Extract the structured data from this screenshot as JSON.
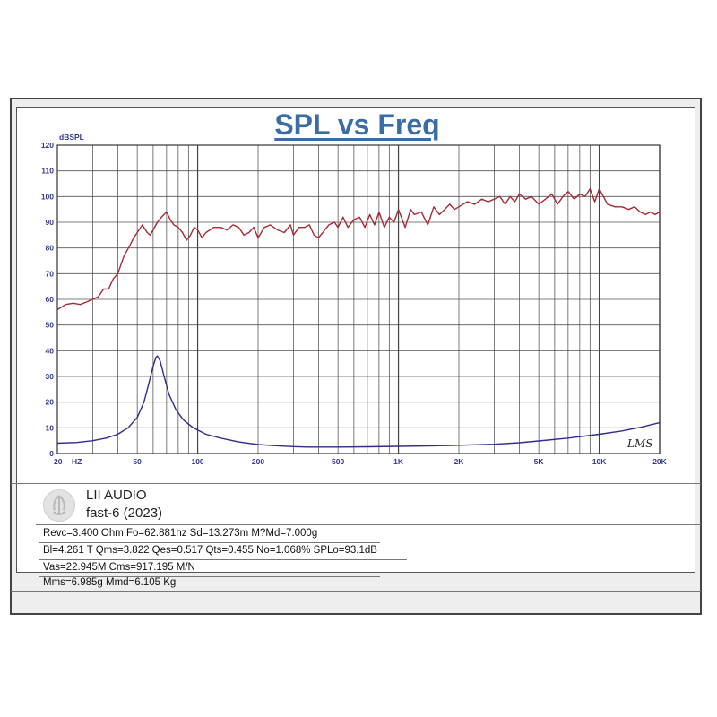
{
  "chart_data": {
    "type": "line",
    "title": "SPL vs Freq",
    "ylabel": "dBSPL",
    "xscale": "log",
    "xlim": [
      20,
      20000
    ],
    "ylim": [
      0,
      120
    ],
    "grid": true,
    "yticks": [
      0,
      10,
      20,
      30,
      40,
      50,
      60,
      70,
      80,
      90,
      100,
      110,
      120
    ],
    "xtick_labels": [
      {
        "value": 20,
        "label": "20"
      },
      {
        "value": 25,
        "label": "HZ"
      },
      {
        "value": 50,
        "label": "50"
      },
      {
        "value": 100,
        "label": "100"
      },
      {
        "value": 200,
        "label": "200"
      },
      {
        "value": 500,
        "label": "500"
      },
      {
        "value": 1000,
        "label": "1K"
      },
      {
        "value": 2000,
        "label": "2K"
      },
      {
        "value": 5000,
        "label": "5K"
      },
      {
        "value": 10000,
        "label": "10K"
      },
      {
        "value": 20000,
        "label": "20K"
      }
    ],
    "series": [
      {
        "color": "#a52a35",
        "x": [
          20,
          22,
          24,
          26,
          28,
          30,
          32,
          34,
          36,
          38,
          40,
          43,
          46,
          48,
          50,
          53,
          56,
          58,
          60,
          63,
          66,
          70,
          73,
          76,
          80,
          84,
          88,
          92,
          96,
          100,
          105,
          110,
          115,
          120,
          130,
          140,
          150,
          160,
          170,
          180,
          190,
          200,
          215,
          230,
          250,
          270,
          290,
          300,
          320,
          340,
          360,
          380,
          400,
          420,
          450,
          480,
          500,
          530,
          560,
          600,
          640,
          680,
          720,
          760,
          800,
          850,
          900,
          950,
          1000,
          1080,
          1150,
          1200,
          1300,
          1400,
          1500,
          1600,
          1700,
          1800,
          1900,
          2000,
          2200,
          2400,
          2600,
          2800,
          3000,
          3200,
          3400,
          3600,
          3800,
          4000,
          4300,
          4600,
          5000,
          5400,
          5800,
          6200,
          6600,
          7000,
          7500,
          8000,
          8500,
          9000,
          9500,
          10000,
          10500,
          11000,
          12000,
          13000,
          14000,
          15000,
          16000,
          17000,
          18000,
          19000,
          20000
        ],
        "y": [
          56,
          58,
          58.5,
          58,
          59,
          60,
          61,
          64,
          64,
          68,
          70,
          77,
          81,
          84,
          86,
          89,
          86,
          85,
          87,
          90,
          92,
          94,
          91,
          89,
          88,
          86,
          83,
          85,
          88,
          87,
          84,
          86,
          87,
          88,
          88,
          87,
          89,
          88,
          85,
          86,
          88,
          84,
          88,
          89,
          87,
          86,
          89,
          85,
          88,
          88,
          89,
          85,
          84,
          86,
          89,
          90,
          88,
          92,
          88,
          91,
          92,
          88,
          93,
          89,
          94,
          88,
          92,
          90,
          95,
          88,
          95,
          93,
          94,
          89,
          96,
          93,
          95,
          97,
          95,
          96,
          98,
          97,
          99,
          98,
          99,
          100,
          97,
          100,
          98,
          101,
          99,
          100,
          97,
          99,
          101,
          97,
          100,
          102,
          99,
          101,
          100,
          103,
          98,
          103,
          100,
          97,
          96,
          96,
          95,
          96,
          94,
          93,
          94,
          93,
          94
        ]
      },
      {
        "color": "#2e2e8c",
        "x": [
          20,
          25,
          30,
          35,
          40,
          45,
          50,
          54,
          57,
          60,
          62,
          63,
          65,
          68,
          72,
          78,
          85,
          95,
          110,
          130,
          160,
          200,
          250,
          300,
          350,
          400,
          500,
          700,
          1000,
          1500,
          2000,
          3000,
          4000,
          5000,
          7000,
          10000,
          13000,
          16000,
          20000
        ],
        "y": [
          4,
          4.3,
          5,
          6,
          7.5,
          10,
          14,
          20,
          27,
          34,
          37.5,
          38,
          36,
          30,
          23,
          17,
          13,
          10,
          7.5,
          6,
          4.5,
          3.5,
          3,
          2.7,
          2.5,
          2.5,
          2.5,
          2.6,
          2.8,
          3,
          3.2,
          3.6,
          4.2,
          4.9,
          6,
          7.5,
          8.8,
          10.2,
          12
        ]
      }
    ],
    "annotation": "LMS"
  },
  "header": {
    "brand": "LII AUDIO",
    "model": "fast-6 (2023)"
  },
  "params": {
    "line1": "Revc=3.400 Ohm  Fo=62.881hz  Sd=13.273m M?Md=7.000g",
    "line2": "Bl=4.261 T Qms=3.822  Qes=0.517  Qts=0.455 No=1.068% SPLo=93.1dB",
    "line3": "Vas=22.945M Cms=917.195 M/N",
    "line4": "Mms=6.985g Mmd=6.105 Kg"
  },
  "logo": {
    "icon": "lii-audio-logo-icon"
  }
}
